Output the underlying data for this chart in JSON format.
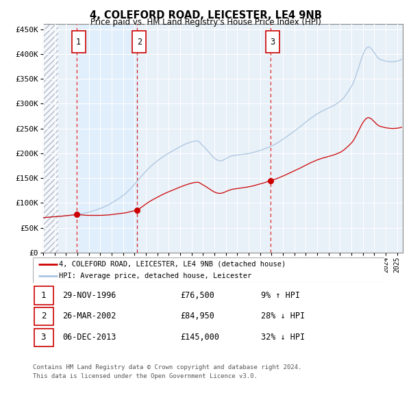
{
  "title": "4, COLEFORD ROAD, LEICESTER, LE4 9NB",
  "subtitle": "Price paid vs. HM Land Registry's House Price Index (HPI)",
  "hpi_color": "#aac4e0",
  "price_color": "#cc0000",
  "sale1_date_num": 1996.91,
  "sale1_price": 76500,
  "sale2_date_num": 2002.23,
  "sale2_price": 84950,
  "sale3_date_num": 2013.92,
  "sale3_price": 145000,
  "vline_color": "#cc0000",
  "shade_color": "#ddeeff",
  "yticks": [
    0,
    50000,
    100000,
    150000,
    200000,
    250000,
    300000,
    350000,
    400000,
    450000
  ],
  "ytick_labels": [
    "£0",
    "£50K",
    "£100K",
    "£150K",
    "£200K",
    "£250K",
    "£300K",
    "£350K",
    "£400K",
    "£450K"
  ],
  "xmin": 1994.0,
  "xmax": 2025.5,
  "ymin": 0,
  "ymax": 460000,
  "legend_line1": "4, COLEFORD ROAD, LEICESTER, LE4 9NB (detached house)",
  "legend_line2": "HPI: Average price, detached house, Leicester",
  "table_entries": [
    {
      "num": "1",
      "date": "29-NOV-1996",
      "price": "£76,500",
      "change": "9% ↑ HPI"
    },
    {
      "num": "2",
      "date": "26-MAR-2002",
      "price": "£84,950",
      "change": "28% ↓ HPI"
    },
    {
      "num": "3",
      "date": "06-DEC-2013",
      "price": "£145,000",
      "change": "32% ↓ HPI"
    }
  ],
  "footnote1": "Contains HM Land Registry data © Crown copyright and database right 2024.",
  "footnote2": "This data is licensed under the Open Government Licence v3.0.",
  "background_color": "#ffffff",
  "plot_bg_color": "#e8f0f8",
  "grid_color": "#ffffff"
}
